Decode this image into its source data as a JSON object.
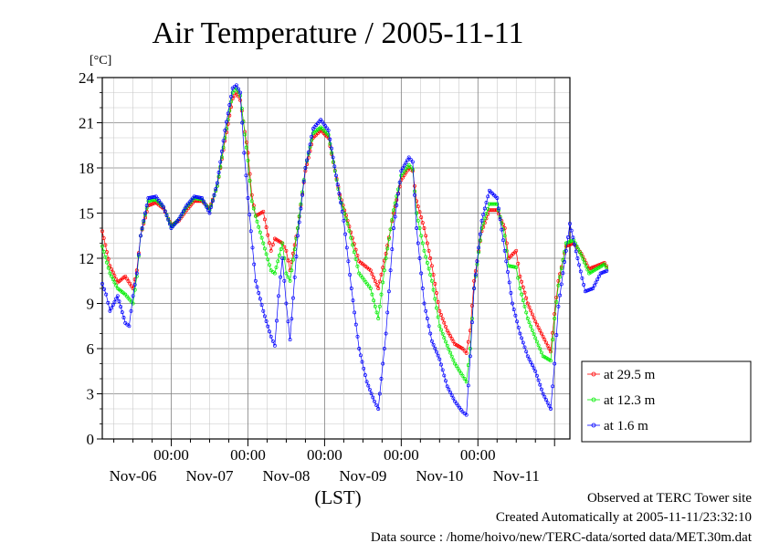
{
  "chart_data": {
    "type": "line",
    "title": "Air Temperature / 2005-11-11",
    "y_unit": "[°C]",
    "xlabel": "(LST)",
    "ylim": [
      0,
      24
    ],
    "y_ticks": [
      "0",
      "3",
      "6",
      "9",
      "12",
      "15",
      "18",
      "21",
      "24"
    ],
    "x_range_days": [
      -0.9,
      5.2
    ],
    "time_labels": [
      "00:00",
      "00:00",
      "00:00",
      "00:00",
      "00:00"
    ],
    "date_labels": [
      "Nov-06",
      "Nov-07",
      "Nov-08",
      "Nov-09",
      "Nov-10",
      "Nov-11"
    ],
    "grid": true,
    "legend_placement": "right",
    "series": [
      {
        "name": "at 29.5 m",
        "color": "#ff0000",
        "points": [
          [
            -0.9,
            13.8
          ],
          [
            -0.8,
            11.5
          ],
          [
            -0.7,
            10.4
          ],
          [
            -0.6,
            10.8
          ],
          [
            -0.5,
            10.0
          ],
          [
            -0.45,
            11.2
          ],
          [
            -0.4,
            13.5
          ],
          [
            -0.3,
            15.5
          ],
          [
            -0.2,
            15.7
          ],
          [
            -0.1,
            15.3
          ],
          [
            0.0,
            14.2
          ],
          [
            0.1,
            14.5
          ],
          [
            0.2,
            15.2
          ],
          [
            0.3,
            15.8
          ],
          [
            0.4,
            15.8
          ],
          [
            0.5,
            15.3
          ],
          [
            0.6,
            16.8
          ],
          [
            0.7,
            19.8
          ],
          [
            0.8,
            22.6
          ],
          [
            0.85,
            23.0
          ],
          [
            0.9,
            22.5
          ],
          [
            1.0,
            19.0
          ],
          [
            1.05,
            16.2
          ],
          [
            1.1,
            14.8
          ],
          [
            1.2,
            15.1
          ],
          [
            1.3,
            12.5
          ],
          [
            1.35,
            13.3
          ],
          [
            1.45,
            13.0
          ],
          [
            1.5,
            12.5
          ],
          [
            1.55,
            11.2
          ],
          [
            1.65,
            14.0
          ],
          [
            1.75,
            17.8
          ],
          [
            1.85,
            20.0
          ],
          [
            1.95,
            20.5
          ],
          [
            2.05,
            20.0
          ],
          [
            2.2,
            16.2
          ],
          [
            2.3,
            14.5
          ],
          [
            2.45,
            11.8
          ],
          [
            2.6,
            11.2
          ],
          [
            2.7,
            10.0
          ],
          [
            2.8,
            12.3
          ],
          [
            2.9,
            15.0
          ],
          [
            3.0,
            17.2
          ],
          [
            3.1,
            18.0
          ],
          [
            3.15,
            17.8
          ],
          [
            3.2,
            15.8
          ],
          [
            3.3,
            14.0
          ],
          [
            3.4,
            11.5
          ],
          [
            3.5,
            8.5
          ],
          [
            3.6,
            7.2
          ],
          [
            3.7,
            6.3
          ],
          [
            3.8,
            6.0
          ],
          [
            3.85,
            5.7
          ],
          [
            3.9,
            7.2
          ],
          [
            3.95,
            10.5
          ],
          [
            4.05,
            13.8
          ],
          [
            4.15,
            15.2
          ],
          [
            4.25,
            15.2
          ],
          [
            4.35,
            14.0
          ],
          [
            4.4,
            12.0
          ],
          [
            4.5,
            12.5
          ],
          [
            4.55,
            10.8
          ],
          [
            4.65,
            9.0
          ],
          [
            4.75,
            7.8
          ],
          [
            4.85,
            6.8
          ],
          [
            4.95,
            5.8
          ],
          [
            5.0,
            8.3
          ],
          [
            5.05,
            10.5
          ],
          [
            5.15,
            12.8
          ],
          [
            5.25,
            13.0
          ],
          [
            5.35,
            12.3
          ],
          [
            5.45,
            11.3
          ],
          [
            5.55,
            11.5
          ],
          [
            5.65,
            11.7
          ],
          [
            5.7,
            11.3
          ]
        ]
      },
      {
        "name": "at 12.3 m",
        "color": "#00ee00",
        "points": [
          [
            -0.9,
            12.8
          ],
          [
            -0.8,
            11.0
          ],
          [
            -0.7,
            10.0
          ],
          [
            -0.6,
            9.6
          ],
          [
            -0.5,
            9.0
          ],
          [
            -0.45,
            10.8
          ],
          [
            -0.4,
            13.5
          ],
          [
            -0.3,
            15.8
          ],
          [
            -0.2,
            15.9
          ],
          [
            -0.1,
            15.4
          ],
          [
            0.0,
            14.1
          ],
          [
            0.1,
            14.6
          ],
          [
            0.2,
            15.4
          ],
          [
            0.3,
            16.0
          ],
          [
            0.4,
            15.9
          ],
          [
            0.5,
            15.2
          ],
          [
            0.6,
            16.8
          ],
          [
            0.7,
            20.0
          ],
          [
            0.8,
            23.0
          ],
          [
            0.85,
            23.3
          ],
          [
            0.9,
            22.8
          ],
          [
            1.0,
            18.5
          ],
          [
            1.05,
            15.8
          ],
          [
            1.1,
            14.8
          ],
          [
            1.2,
            13.0
          ],
          [
            1.3,
            11.2
          ],
          [
            1.35,
            11.0
          ],
          [
            1.45,
            13.0
          ],
          [
            1.5,
            11.0
          ],
          [
            1.55,
            10.5
          ],
          [
            1.65,
            14.0
          ],
          [
            1.75,
            18.0
          ],
          [
            1.85,
            20.3
          ],
          [
            1.95,
            20.7
          ],
          [
            2.05,
            20.2
          ],
          [
            2.2,
            16.0
          ],
          [
            2.3,
            14.3
          ],
          [
            2.45,
            11.0
          ],
          [
            2.6,
            10.0
          ],
          [
            2.7,
            8.0
          ],
          [
            2.8,
            12.0
          ],
          [
            2.9,
            15.2
          ],
          [
            3.0,
            17.5
          ],
          [
            3.1,
            18.2
          ],
          [
            3.15,
            17.9
          ],
          [
            3.2,
            15.0
          ],
          [
            3.3,
            12.5
          ],
          [
            3.4,
            10.5
          ],
          [
            3.5,
            7.5
          ],
          [
            3.6,
            6.2
          ],
          [
            3.7,
            5.0
          ],
          [
            3.8,
            4.2
          ],
          [
            3.85,
            3.8
          ],
          [
            3.9,
            6.0
          ],
          [
            3.95,
            10.0
          ],
          [
            4.05,
            14.0
          ],
          [
            4.15,
            15.6
          ],
          [
            4.25,
            15.6
          ],
          [
            4.35,
            13.5
          ],
          [
            4.4,
            11.5
          ],
          [
            4.5,
            11.4
          ],
          [
            4.55,
            10.0
          ],
          [
            4.65,
            8.0
          ],
          [
            4.75,
            6.7
          ],
          [
            4.85,
            5.5
          ],
          [
            4.95,
            5.2
          ],
          [
            5.0,
            8.0
          ],
          [
            5.05,
            10.2
          ],
          [
            5.15,
            13.0
          ],
          [
            5.25,
            13.2
          ],
          [
            5.35,
            12.2
          ],
          [
            5.45,
            11.0
          ],
          [
            5.55,
            11.3
          ],
          [
            5.65,
            11.6
          ],
          [
            5.7,
            11.2
          ]
        ]
      },
      {
        "name": "at 1.6 m",
        "color": "#0000ff",
        "points": [
          [
            -0.9,
            10.3
          ],
          [
            -0.85,
            9.6
          ],
          [
            -0.8,
            8.5
          ],
          [
            -0.7,
            9.5
          ],
          [
            -0.6,
            7.7
          ],
          [
            -0.55,
            7.5
          ],
          [
            -0.5,
            9.5
          ],
          [
            -0.45,
            11.0
          ],
          [
            -0.4,
            13.5
          ],
          [
            -0.3,
            16.0
          ],
          [
            -0.2,
            16.1
          ],
          [
            -0.1,
            15.4
          ],
          [
            0.0,
            14.0
          ],
          [
            0.1,
            14.6
          ],
          [
            0.2,
            15.5
          ],
          [
            0.3,
            16.1
          ],
          [
            0.4,
            16.0
          ],
          [
            0.5,
            15.0
          ],
          [
            0.6,
            17.0
          ],
          [
            0.7,
            20.5
          ],
          [
            0.8,
            23.3
          ],
          [
            0.85,
            23.5
          ],
          [
            0.9,
            23.0
          ],
          [
            0.95,
            19.0
          ],
          [
            1.0,
            16.0
          ],
          [
            1.1,
            10.5
          ],
          [
            1.2,
            8.5
          ],
          [
            1.3,
            6.8
          ],
          [
            1.35,
            6.2
          ],
          [
            1.4,
            9.5
          ],
          [
            1.45,
            12.0
          ],
          [
            1.5,
            9.0
          ],
          [
            1.55,
            6.6
          ],
          [
            1.65,
            13.5
          ],
          [
            1.75,
            18.0
          ],
          [
            1.85,
            20.6
          ],
          [
            1.95,
            21.2
          ],
          [
            2.05,
            20.5
          ],
          [
            2.15,
            17.5
          ],
          [
            2.25,
            14.5
          ],
          [
            2.35,
            10.0
          ],
          [
            2.45,
            6.0
          ],
          [
            2.55,
            3.8
          ],
          [
            2.65,
            2.5
          ],
          [
            2.7,
            2.0
          ],
          [
            2.8,
            7.0
          ],
          [
            2.9,
            14.0
          ],
          [
            3.0,
            17.8
          ],
          [
            3.1,
            18.7
          ],
          [
            3.15,
            18.4
          ],
          [
            3.2,
            14.0
          ],
          [
            3.3,
            9.0
          ],
          [
            3.4,
            6.5
          ],
          [
            3.5,
            5.3
          ],
          [
            3.6,
            3.5
          ],
          [
            3.7,
            2.5
          ],
          [
            3.8,
            1.8
          ],
          [
            3.85,
            1.6
          ],
          [
            3.9,
            5.5
          ],
          [
            3.95,
            10.0
          ],
          [
            4.05,
            14.5
          ],
          [
            4.15,
            16.5
          ],
          [
            4.25,
            16.0
          ],
          [
            4.35,
            12.5
          ],
          [
            4.45,
            9.0
          ],
          [
            4.55,
            7.0
          ],
          [
            4.65,
            5.5
          ],
          [
            4.75,
            4.5
          ],
          [
            4.85,
            3.0
          ],
          [
            4.95,
            2.0
          ],
          [
            5.0,
            5.0
          ],
          [
            5.05,
            8.8
          ],
          [
            5.15,
            12.5
          ],
          [
            5.2,
            14.3
          ],
          [
            5.3,
            12.0
          ],
          [
            5.4,
            9.8
          ],
          [
            5.5,
            10.0
          ],
          [
            5.6,
            11.0
          ],
          [
            5.7,
            11.2
          ]
        ]
      }
    ]
  },
  "footer": {
    "line1": "Observed at TERC Tower site",
    "line2": "Created Automatically at 2005-11-11/23:32:10",
    "line3": "Data source : /home/hoivo/new/TERC-data/sorted data/MET.30m.dat"
  }
}
